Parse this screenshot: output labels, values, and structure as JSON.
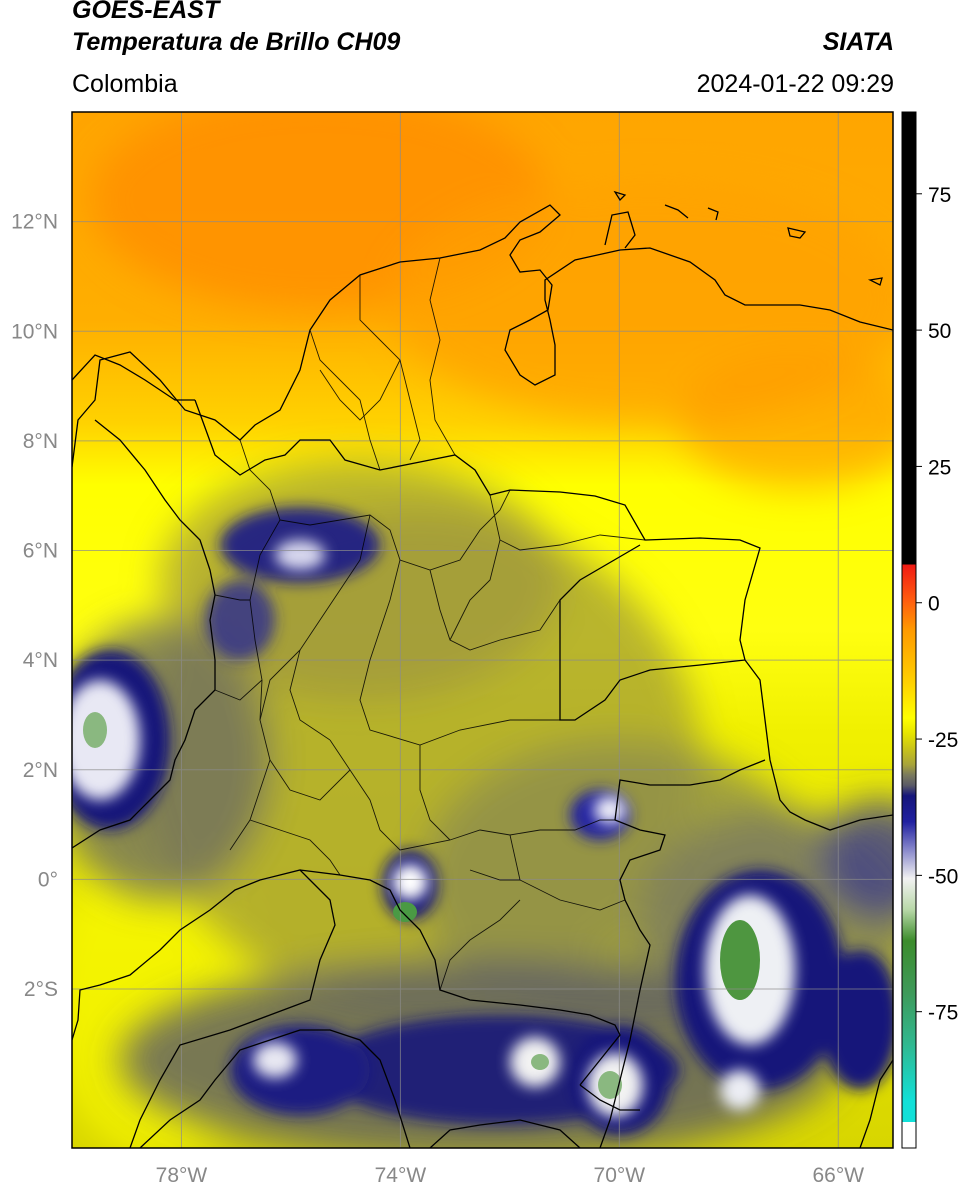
{
  "header": {
    "satellite": "GOES-EAST",
    "product": "Temperatura de Brillo CH09",
    "agency": "SIATA",
    "region": "Colombia",
    "datetime": "2024-01-22 09:29"
  },
  "map": {
    "lon_range": [
      -80,
      -65
    ],
    "lat_range": [
      -4.9,
      14.0
    ],
    "lon_ticks": [
      "78°W",
      "74°W",
      "70°W",
      "66°W"
    ],
    "lon_tick_values": [
      -78,
      -74,
      -70,
      -66
    ],
    "lat_ticks": [
      "12°N",
      "10°N",
      "8°N",
      "6°N",
      "4°N",
      "2°N",
      "0°",
      "2°S"
    ],
    "lat_tick_values": [
      12,
      10,
      8,
      6,
      4,
      2,
      0,
      -2
    ],
    "grid": true
  },
  "colorbar": {
    "ticks": [
      "75",
      "50",
      "25",
      "0",
      "-25",
      "-50",
      "-75"
    ],
    "tick_values": [
      75,
      50,
      25,
      0,
      -25,
      -50,
      -75
    ],
    "range": [
      -100,
      90
    ],
    "colors": {
      "top": "#000000",
      "red": "#e8251b",
      "orange": "#ff9900",
      "yellow": "#ffff00",
      "olive": "#c8c31a",
      "gray": "#6e6e5a",
      "navy": "#15157a",
      "white": "#f2f2f2",
      "green": "#3c8c2c",
      "cyan": "#12e0d8"
    }
  }
}
